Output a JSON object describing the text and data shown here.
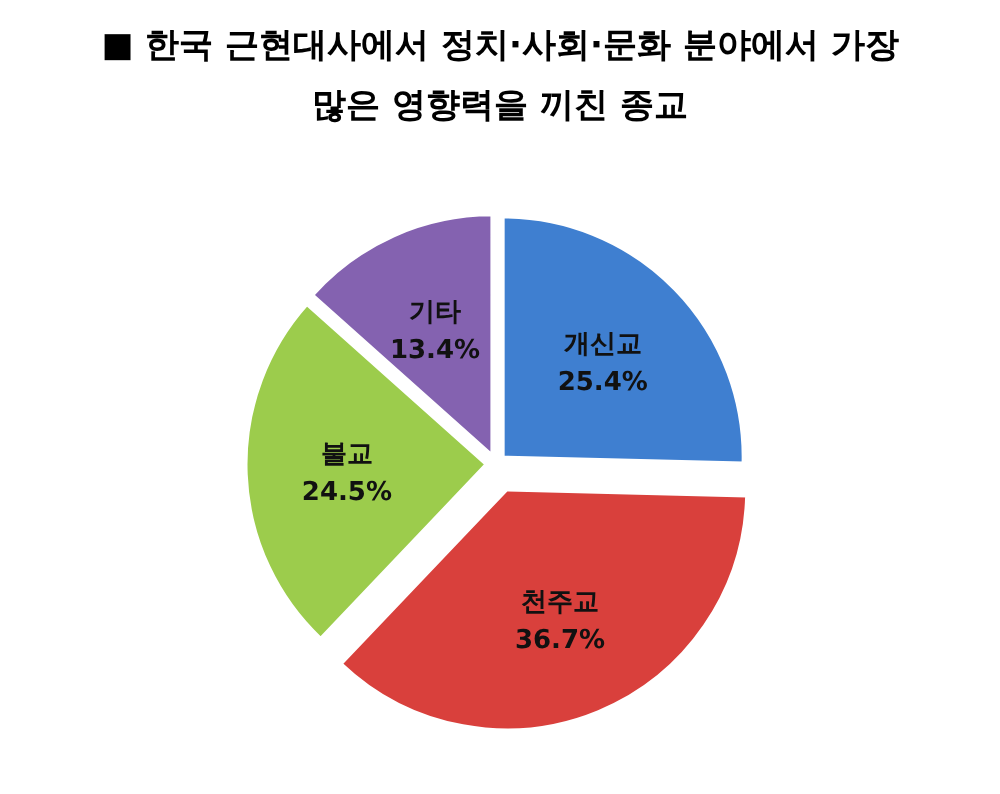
{
  "chart_data": {
    "type": "pie",
    "title": "■ 한국 근현대사에서 정치·사회·문화 분야에서 가장 많은 영향력을 끼친 종교",
    "categories": [
      "개신교",
      "천주교",
      "불교",
      "기타"
    ],
    "values": [
      25.4,
      36.7,
      24.5,
      13.4
    ],
    "colors": [
      "#3f7fd0",
      "#d9403c",
      "#9ccc4c",
      "#8462b0"
    ],
    "value_labels": [
      "25.4%",
      "36.7%",
      "24.5%",
      "13.4%"
    ]
  }
}
